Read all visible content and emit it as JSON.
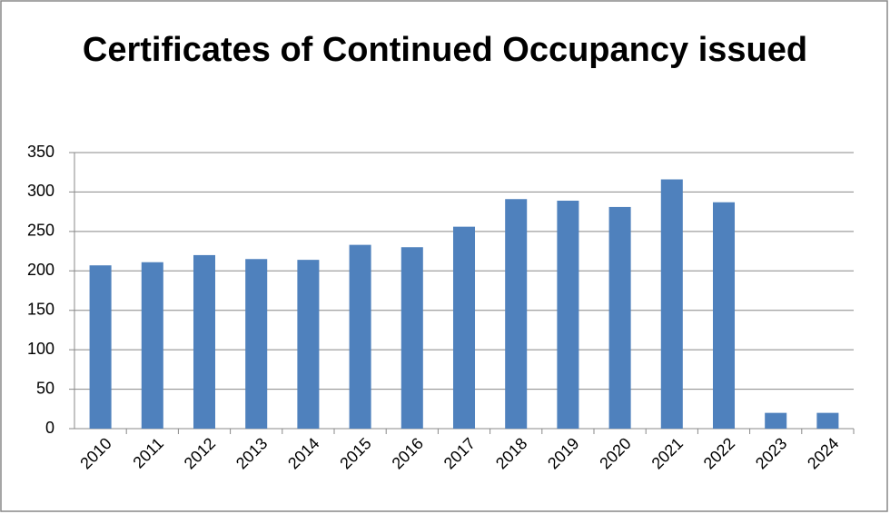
{
  "chart_data": {
    "type": "bar",
    "title": "Certificates of Continued Occupancy issued",
    "categories": [
      "2010",
      "2011",
      "2012",
      "2013",
      "2014",
      "2015",
      "2016",
      "2017",
      "2018",
      "2019",
      "2020",
      "2021",
      "2022",
      "2023",
      "2024"
    ],
    "values": [
      207,
      211,
      220,
      215,
      214,
      233,
      230,
      256,
      291,
      289,
      281,
      316,
      287,
      20,
      20
    ],
    "color": "#4f81bd",
    "ylim": [
      0,
      350
    ],
    "yticks": [
      0,
      50,
      100,
      150,
      200,
      250,
      300,
      350
    ],
    "grid": true
  }
}
